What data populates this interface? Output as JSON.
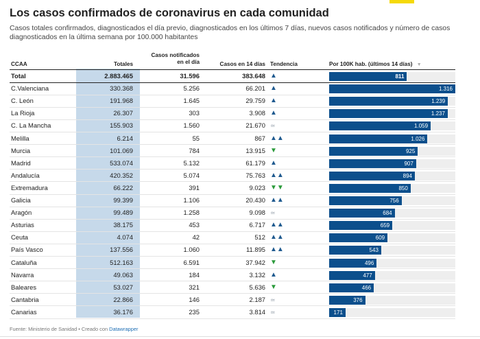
{
  "title": "Los casos confirmados de coronavirus en cada comunidad",
  "description": "Casos totales confirmados, diagnosticados el día previo, diagnosticados en los últimos 7 días, nuevos casos notificados y número de casos diagnosticados en la última semana por 100.000 habitantes",
  "headers": {
    "ccaa": "CCAA",
    "totales": "Totales",
    "notificados_1": "Casos notificados",
    "notificados_2": "en el día",
    "casos14": "Casos en 14 días",
    "tendencia": "Tendencia",
    "per100k": "Por 100K hab. (últimos 14 días)",
    "sort_icon": "▼"
  },
  "colors": {
    "bar": "#0c4f8c",
    "track": "#eeeeee",
    "shade": "#c6d9ea",
    "accent": "#f5d90a"
  },
  "footer": {
    "source": "Fuente: Ministerio de Sanidad • Creado con ",
    "link": "Datawrapper"
  },
  "chart_data": {
    "type": "table",
    "title": "Los casos confirmados de coronavirus en cada comunidad",
    "columns": [
      "CCAA",
      "Totales",
      "Casos notificados en el día",
      "Casos en 14 días",
      "Tendencia",
      "Por 100K hab. (últimos 14 días)"
    ],
    "bar_max": 1316,
    "total": {
      "ccaa": "Total",
      "totales": "2.883.465",
      "notificados": "31.596",
      "casos14": "383.648",
      "tendencia": "up",
      "per100k": 811
    },
    "rows": [
      {
        "ccaa": "C.Valenciana",
        "totales": "330.368",
        "notificados": "5.256",
        "casos14": "66.201",
        "tendencia": "up",
        "per100k": 1316
      },
      {
        "ccaa": "C. León",
        "totales": "191.968",
        "notificados": "1.645",
        "casos14": "29.759",
        "tendencia": "up",
        "per100k": 1239
      },
      {
        "ccaa": "La Rioja",
        "totales": "26.307",
        "notificados": "303",
        "casos14": "3.908",
        "tendencia": "up",
        "per100k": 1237
      },
      {
        "ccaa": "C. La Mancha",
        "totales": "155.903",
        "notificados": "1.560",
        "casos14": "21.670",
        "tendencia": "eq",
        "per100k": 1059
      },
      {
        "ccaa": "Melilla",
        "totales": "6.214",
        "notificados": "55",
        "casos14": "867",
        "tendencia": "up2",
        "per100k": 1026
      },
      {
        "ccaa": "Murcia",
        "totales": "101.069",
        "notificados": "784",
        "casos14": "13.915",
        "tendencia": "down",
        "per100k": 925
      },
      {
        "ccaa": "Madrid",
        "totales": "533.074",
        "notificados": "5.132",
        "casos14": "61.179",
        "tendencia": "up",
        "per100k": 907
      },
      {
        "ccaa": "Andalucía",
        "totales": "420.352",
        "notificados": "5.074",
        "casos14": "75.763",
        "tendencia": "up2",
        "per100k": 894
      },
      {
        "ccaa": "Extremadura",
        "totales": "66.222",
        "notificados": "391",
        "casos14": "9.023",
        "tendencia": "down2",
        "per100k": 850
      },
      {
        "ccaa": "Galicia",
        "totales": "99.399",
        "notificados": "1.106",
        "casos14": "20.430",
        "tendencia": "up2",
        "per100k": 756
      },
      {
        "ccaa": "Aragón",
        "totales": "99.489",
        "notificados": "1.258",
        "casos14": "9.098",
        "tendencia": "eq",
        "per100k": 684
      },
      {
        "ccaa": "Asturias",
        "totales": "38.175",
        "notificados": "453",
        "casos14": "6.717",
        "tendencia": "up2",
        "per100k": 659
      },
      {
        "ccaa": "Ceuta",
        "totales": "4.074",
        "notificados": "42",
        "casos14": "512",
        "tendencia": "up2",
        "per100k": 609
      },
      {
        "ccaa": "País Vasco",
        "totales": "137.556",
        "notificados": "1.060",
        "casos14": "11.895",
        "tendencia": "up2",
        "per100k": 543
      },
      {
        "ccaa": "Cataluña",
        "totales": "512.163",
        "notificados": "6.591",
        "casos14": "37.942",
        "tendencia": "down",
        "per100k": 496
      },
      {
        "ccaa": "Navarra",
        "totales": "49.063",
        "notificados": "184",
        "casos14": "3.132",
        "tendencia": "up",
        "per100k": 477
      },
      {
        "ccaa": "Baleares",
        "totales": "53.027",
        "notificados": "321",
        "casos14": "5.636",
        "tendencia": "down",
        "per100k": 466
      },
      {
        "ccaa": "Cantabria",
        "totales": "22.866",
        "notificados": "146",
        "casos14": "2.187",
        "tendencia": "eq",
        "per100k": 376
      },
      {
        "ccaa": "Canarias",
        "totales": "36.176",
        "notificados": "235",
        "casos14": "3.814",
        "tendencia": "eq",
        "per100k": 171
      }
    ]
  }
}
